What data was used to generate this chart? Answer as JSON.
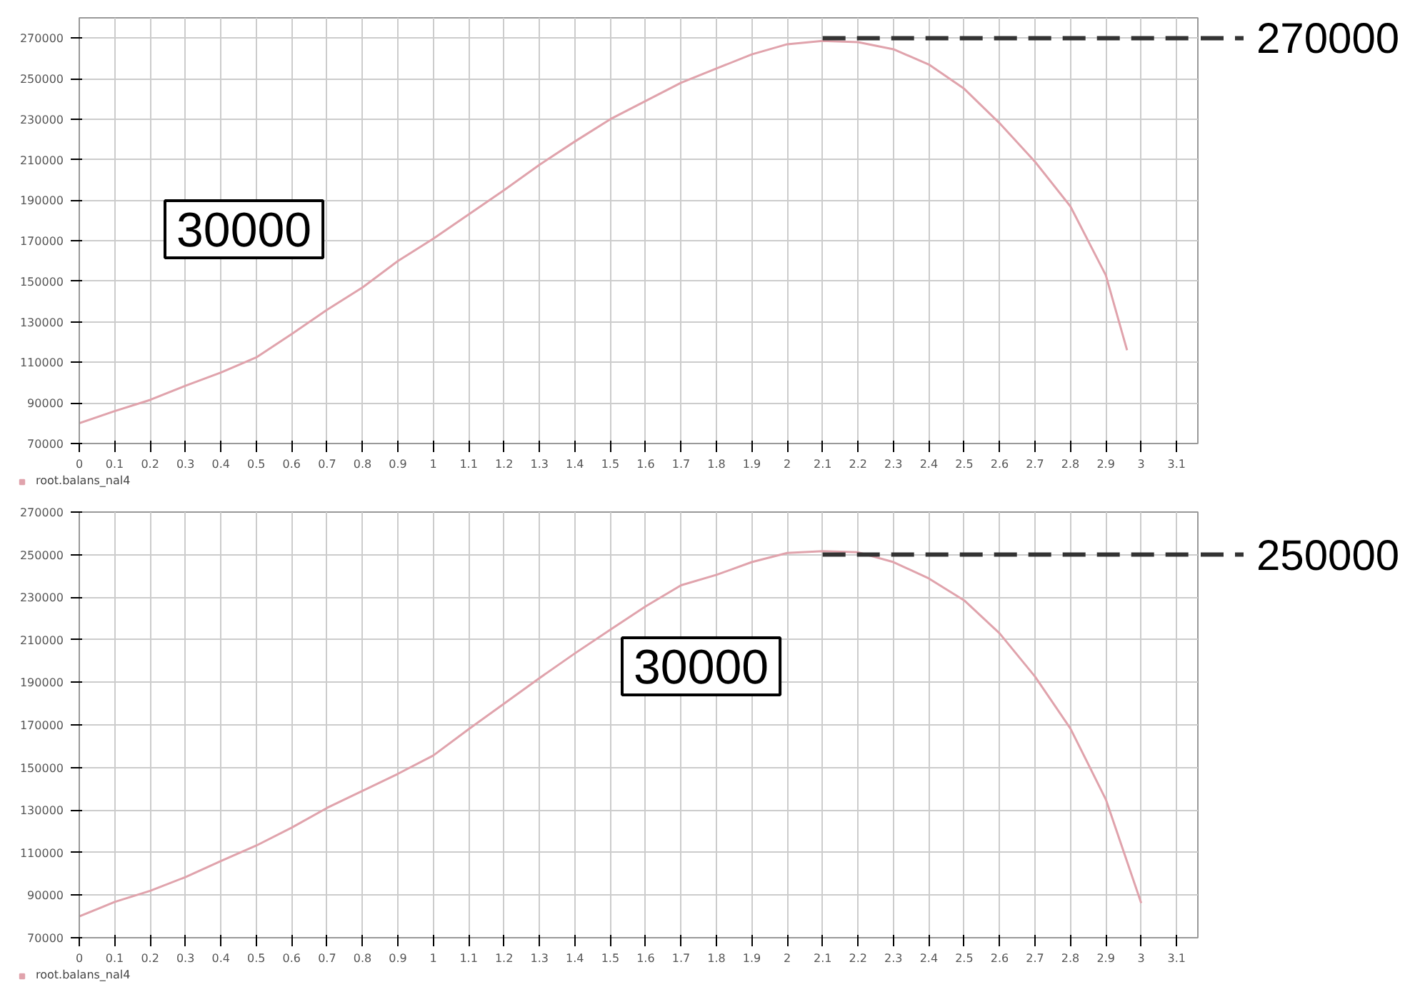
{
  "chart_data": [
    {
      "type": "line",
      "x": [
        0,
        0.1,
        0.2,
        0.3,
        0.4,
        0.5,
        0.6,
        0.7,
        0.8,
        0.9,
        1,
        1.1,
        1.2,
        1.3,
        1.4,
        1.5,
        1.6,
        1.7,
        1.8,
        1.9,
        2,
        2.1,
        2.2,
        2.3,
        2.4,
        2.5,
        2.6,
        2.7,
        2.8,
        2.9,
        2.96
      ],
      "series": [
        {
          "name": "root.balans_nal4",
          "color": "#e0a3ac",
          "values": [
            80000,
            86000,
            91500,
            98500,
            105000,
            112500,
            124000,
            136000,
            147000,
            160000,
            171000,
            183000,
            195000,
            207500,
            219000,
            230000,
            239000,
            248000,
            255000,
            262000,
            267000,
            268600,
            268000,
            264500,
            257000,
            245000,
            228000,
            209000,
            187000,
            153000,
            116000
          ]
        }
      ],
      "xlim": [
        0,
        3.16
      ],
      "ylim": [
        70000,
        280000
      ],
      "xticks": [
        0,
        0.1,
        0.2,
        0.3,
        0.4,
        0.5,
        0.6,
        0.7,
        0.8,
        0.9,
        1,
        1.1,
        1.2,
        1.3,
        1.4,
        1.5,
        1.6,
        1.7,
        1.8,
        1.9,
        2,
        2.1,
        2.2,
        2.3,
        2.4,
        2.5,
        2.6,
        2.7,
        2.8,
        2.9,
        3,
        3.1
      ],
      "yticks": [
        70000,
        90000,
        110000,
        130000,
        150000,
        170000,
        190000,
        210000,
        230000,
        250000,
        270000
      ],
      "grid": true,
      "legend": "bottom left",
      "ref_lines": [
        {
          "axis": "y",
          "value": 270000,
          "label": "270000",
          "color": "#333333",
          "line_style": "dashed"
        }
      ],
      "annotations": [
        "30000"
      ]
    },
    {
      "type": "line",
      "x": [
        0,
        0.1,
        0.2,
        0.3,
        0.4,
        0.5,
        0.6,
        0.7,
        0.8,
        0.9,
        1,
        1.1,
        1.2,
        1.3,
        1.4,
        1.5,
        1.6,
        1.7,
        1.8,
        1.9,
        2,
        2.1,
        2.2,
        2.3,
        2.4,
        2.5,
        2.6,
        2.7,
        2.8,
        2.9,
        3
      ],
      "series": [
        {
          "name": "root.balans_nal4",
          "color": "#e0a3ac",
          "values": [
            80000,
            86800,
            92000,
            98500,
            106000,
            113300,
            121700,
            131000,
            139000,
            147000,
            155600,
            168000,
            180000,
            192000,
            203600,
            214700,
            225700,
            235600,
            240500,
            246500,
            250800,
            251600,
            251100,
            246500,
            238800,
            228500,
            213000,
            192700,
            168300,
            135000,
            86300
          ]
        }
      ],
      "xlim": [
        0,
        3.16
      ],
      "ylim": [
        70000,
        270000
      ],
      "xticks": [
        0,
        0.1,
        0.2,
        0.3,
        0.4,
        0.5,
        0.6,
        0.7,
        0.8,
        0.9,
        1,
        1.1,
        1.2,
        1.3,
        1.4,
        1.5,
        1.6,
        1.7,
        1.8,
        1.9,
        2,
        2.1,
        2.2,
        2.3,
        2.4,
        2.5,
        2.6,
        2.7,
        2.8,
        2.9,
        3,
        3.1
      ],
      "yticks": [
        70000,
        90000,
        110000,
        130000,
        150000,
        170000,
        190000,
        210000,
        230000,
        250000,
        270000
      ],
      "grid": true,
      "legend": "bottom left",
      "ref_lines": [
        {
          "axis": "y",
          "value": 250000,
          "label": "250000",
          "color": "#333333",
          "line_style": "dashed"
        }
      ],
      "annotations": [
        "30000"
      ]
    }
  ]
}
